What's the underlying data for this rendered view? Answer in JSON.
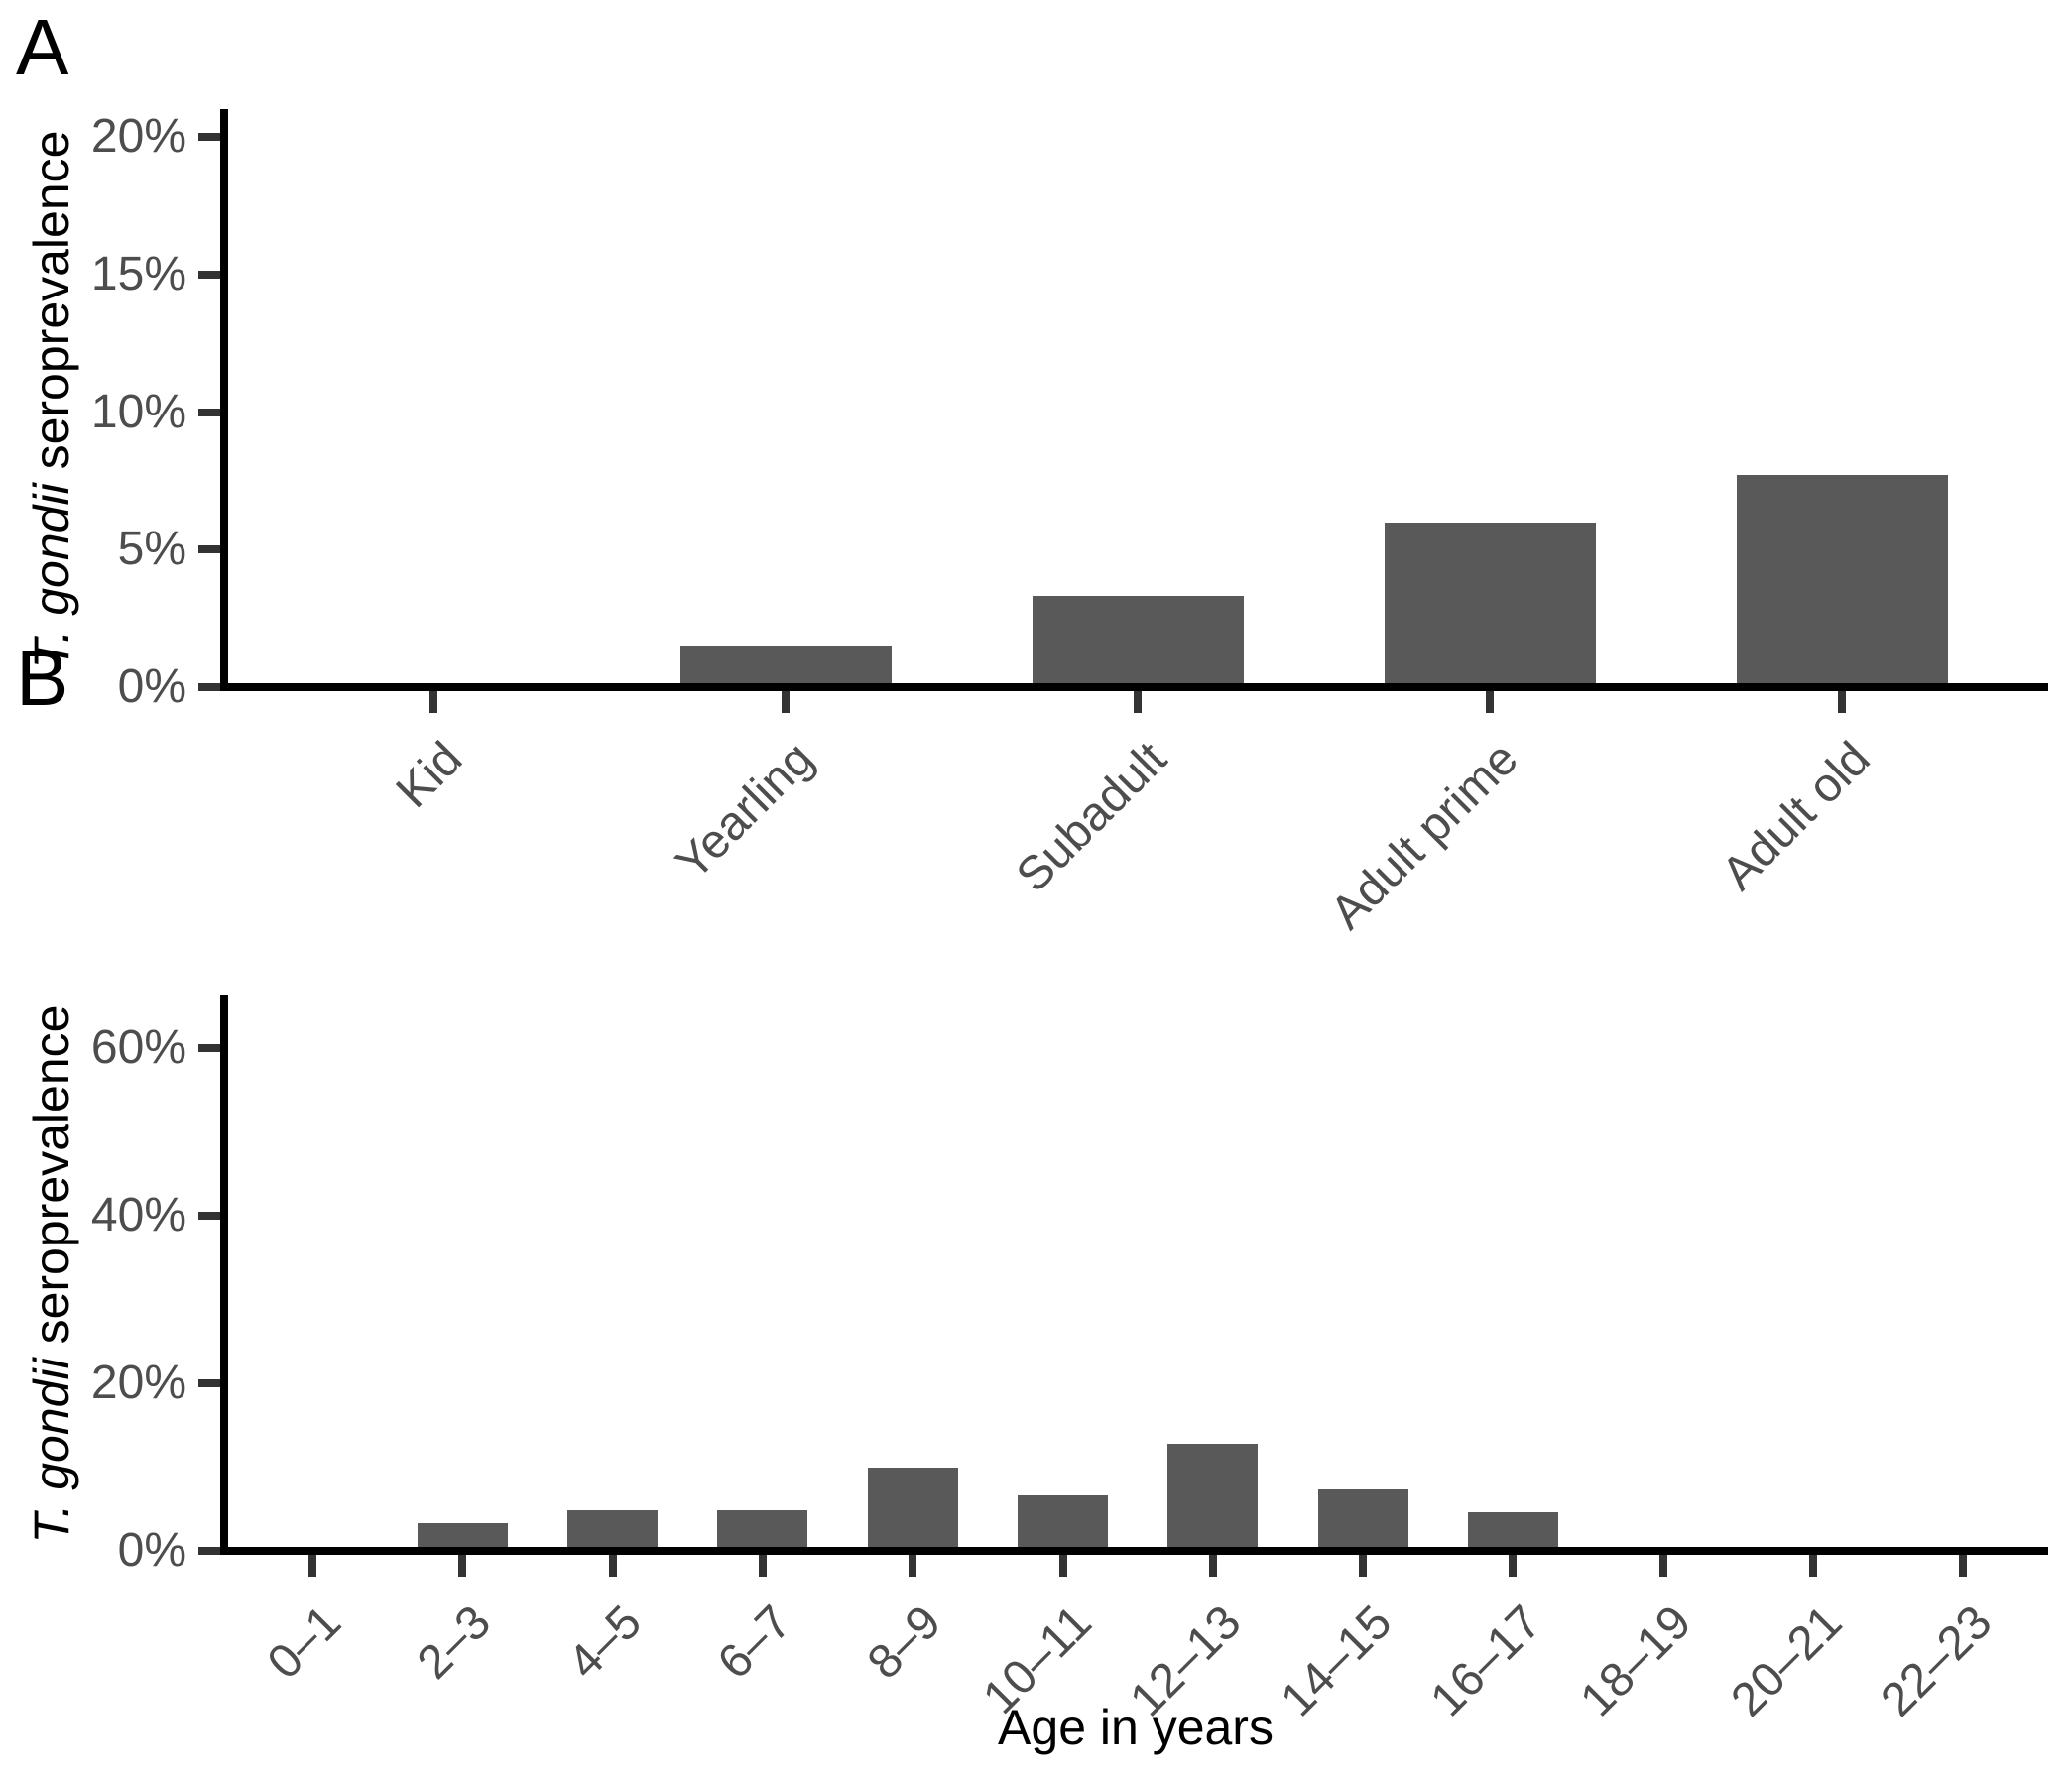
{
  "figure": {
    "type": "two-panel seroprevalence bar figure",
    "background": "#ffffff"
  },
  "colors": {
    "bar": "#595959",
    "axis_line": "#000000",
    "tick_mark": "#333333",
    "tick_label": "#4d4d4d",
    "title_text": "#000000"
  },
  "chart_data": [
    {
      "type": "bar",
      "panel": "A",
      "title": "",
      "categories": [
        "Kid",
        "Yearling",
        "Subadult",
        "Adult prime",
        "Adult old"
      ],
      "values": [
        0,
        1.5,
        3.3,
        6.0,
        7.7
      ],
      "value_unit": "percent",
      "xlabel": "",
      "ylabel": "T. gondii seroprevalence",
      "ylabel_italic_part": "T. gondii",
      "ylabel_regular_part": " seroprevalence",
      "yticks": [
        0,
        5,
        10,
        15,
        20
      ],
      "ytick_labels": [
        "0%",
        "5%",
        "10%",
        "15%",
        "20%"
      ],
      "ylim": [
        0,
        21
      ],
      "grid": "off",
      "legend": "none",
      "bar_color": "#595959",
      "x_tick_label_angle_deg": 45
    },
    {
      "type": "bar",
      "panel": "B",
      "title": "",
      "categories": [
        "0–1",
        "2–3",
        "4–5",
        "6–7",
        "8–9",
        "10–11",
        "12–13",
        "14–15",
        "16–17",
        "18–19",
        "20–21",
        "22–23"
      ],
      "values": [
        0,
        3.3,
        4.8,
        4.8,
        9.9,
        6.6,
        12.8,
        7.3,
        4.6,
        0,
        0,
        0
      ],
      "value_unit": "percent",
      "xlabel": "Age in years",
      "ylabel": "T. gondii seroprevalence",
      "ylabel_italic_part": "T. gondii",
      "ylabel_regular_part": " seroprevalence",
      "yticks": [
        0,
        20,
        40,
        60
      ],
      "ytick_labels": [
        "0%",
        "20%",
        "40%",
        "60%"
      ],
      "ylim": [
        0,
        66
      ],
      "grid": "off",
      "legend": "none",
      "bar_color": "#595959",
      "x_tick_label_angle_deg": 45
    }
  ]
}
